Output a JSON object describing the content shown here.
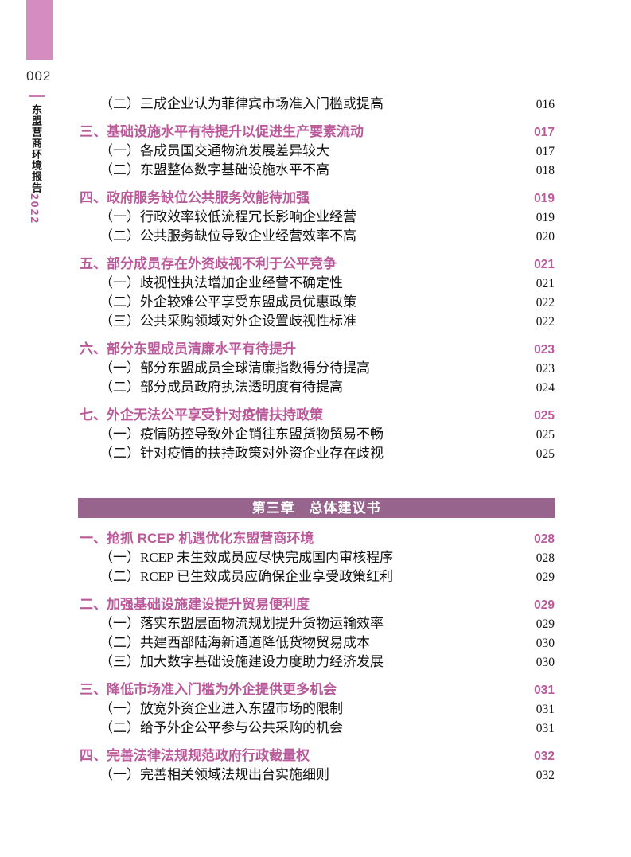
{
  "colors": {
    "accent_pink": "#bb5a9b",
    "banner_purple": "#96648c",
    "sidebar_pink": "#d58cbe",
    "sidebar_line_pink": "#cc7ab4"
  },
  "sidebar": {
    "page_number": "002",
    "report_title_vertical": "东盟营商环境报告",
    "report_year": "2022"
  },
  "toc": {
    "items": [
      {
        "type": "sub",
        "label": "（二）三成企业认为菲律宾市场准入门槛或提高",
        "page": "016"
      },
      {
        "type": "section",
        "label": "三、基础设施水平有待提升以促进生产要素流动",
        "page": "017"
      },
      {
        "type": "sub",
        "label": "（一）各成员国交通物流发展差异较大",
        "page": "017"
      },
      {
        "type": "sub",
        "label": "（二）东盟整体数字基础设施水平不高",
        "page": "018"
      },
      {
        "type": "section",
        "label": "四、政府服务缺位公共服务效能待加强",
        "page": "019"
      },
      {
        "type": "sub",
        "label": "（一）行政效率较低流程冗长影响企业经营",
        "page": "019"
      },
      {
        "type": "sub",
        "label": "（二）公共服务缺位导致企业经营效率不高",
        "page": "020"
      },
      {
        "type": "section",
        "label": "五、部分成员存在外资歧视不利于公平竞争",
        "page": "021"
      },
      {
        "type": "sub",
        "label": "（一）歧视性执法增加企业经营不确定性",
        "page": "021"
      },
      {
        "type": "sub",
        "label": "（二）外企较难公平享受东盟成员优惠政策",
        "page": "022"
      },
      {
        "type": "sub",
        "label": "（三）公共采购领域对外企设置歧视性标准",
        "page": "022"
      },
      {
        "type": "section",
        "label": "六、部分东盟成员清廉水平有待提升",
        "page": "023"
      },
      {
        "type": "sub",
        "label": "（一）部分东盟成员全球清廉指数得分待提高",
        "page": "023"
      },
      {
        "type": "sub",
        "label": "（二）部分成员政府执法透明度有待提高",
        "page": "024"
      },
      {
        "type": "section",
        "label": "七、外企无法公平享受针对疫情扶持政策",
        "page": "025"
      },
      {
        "type": "sub",
        "label": "（一）疫情防控导致外企销往东盟货物贸易不畅",
        "page": "025"
      },
      {
        "type": "sub",
        "label": "（二）针对疫情的扶持政策对外资企业存在歧视",
        "page": "025"
      },
      {
        "type": "banner",
        "label": "第三章　总体建议书"
      },
      {
        "type": "section",
        "label": "一、抢抓 RCEP 机遇优化东盟营商环境",
        "page": "028"
      },
      {
        "type": "sub",
        "label": "（一）RCEP 未生效成员应尽快完成国内审核程序",
        "page": "028"
      },
      {
        "type": "sub",
        "label": "（二）RCEP 已生效成员应确保企业享受政策红利",
        "page": "029"
      },
      {
        "type": "section",
        "label": "二、加强基础设施建设提升贸易便利度",
        "page": "029"
      },
      {
        "type": "sub",
        "label": "（一）落实东盟层面物流规划提升货物运输效率",
        "page": "029"
      },
      {
        "type": "sub",
        "label": "（二）共建西部陆海新通道降低货物贸易成本",
        "page": "030"
      },
      {
        "type": "sub",
        "label": "（三）加大数字基础设施建设力度助力经济发展",
        "page": "030"
      },
      {
        "type": "section",
        "label": "三、降低市场准入门槛为外企提供更多机会",
        "page": "031"
      },
      {
        "type": "sub",
        "label": "（一）放宽外资企业进入东盟市场的限制",
        "page": "031"
      },
      {
        "type": "sub",
        "label": "（二）给予外企公平参与公共采购的机会",
        "page": "031"
      },
      {
        "type": "section",
        "label": "四、完善法律法规规范政府行政裁量权",
        "page": "032"
      },
      {
        "type": "sub",
        "label": "（一）完善相关领域法规出台实施细则",
        "page": "032"
      }
    ]
  }
}
